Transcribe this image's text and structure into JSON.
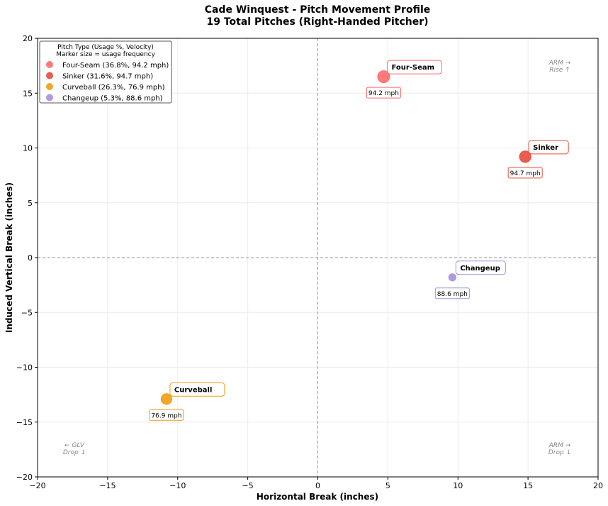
{
  "chart_data": {
    "type": "scatter",
    "title": "Cade Winquest - Pitch Movement Profile",
    "subtitle": "19 Total Pitches (Right-Handed Pitcher)",
    "xlabel": "Horizontal Break (inches)",
    "ylabel": "Induced Vertical Break (inches)",
    "xlim": [
      -20,
      20
    ],
    "ylim": [
      -20,
      20
    ],
    "xticks": [
      -20,
      -15,
      -10,
      -5,
      0,
      5,
      10,
      15,
      20
    ],
    "yticks": [
      -20,
      -15,
      -10,
      -5,
      0,
      5,
      10,
      15,
      20
    ],
    "grid": true,
    "legend": {
      "placement": "top-left",
      "title": "Pitch Type (Usage %, Velocity)",
      "subtitle": "Marker size = usage frequency"
    },
    "series": [
      {
        "name": "Four-Seam",
        "legend_label": "Four-Seam (36.8%, 94.2 mph)",
        "usage": 36.8,
        "velocity_label": "94.2 mph",
        "x": 4.7,
        "y": 16.5,
        "color": "#ff6b6b"
      },
      {
        "name": "Sinker",
        "legend_label": "Sinker (31.6%, 94.7 mph)",
        "usage": 31.6,
        "velocity_label": "94.7 mph",
        "x": 14.8,
        "y": 9.2,
        "color": "#e74c3c"
      },
      {
        "name": "Curveball",
        "legend_label": "Curveball (26.3%, 76.9 mph)",
        "usage": 26.3,
        "velocity_label": "76.9 mph",
        "x": -10.8,
        "y": -12.9,
        "color": "#f39c12"
      },
      {
        "name": "Changeup",
        "legend_label": "Changeup (5.3%, 88.6 mph)",
        "usage": 5.3,
        "velocity_label": "88.6 mph",
        "x": 9.6,
        "y": -1.8,
        "color": "#a98fdc"
      }
    ],
    "annotations": {
      "top_right": [
        "ARM →",
        "Rise ↑"
      ],
      "bottom_left": [
        "← GLV",
        "Drop ↓"
      ],
      "bottom_right": [
        "ARM →",
        "Drop ↓"
      ]
    }
  }
}
